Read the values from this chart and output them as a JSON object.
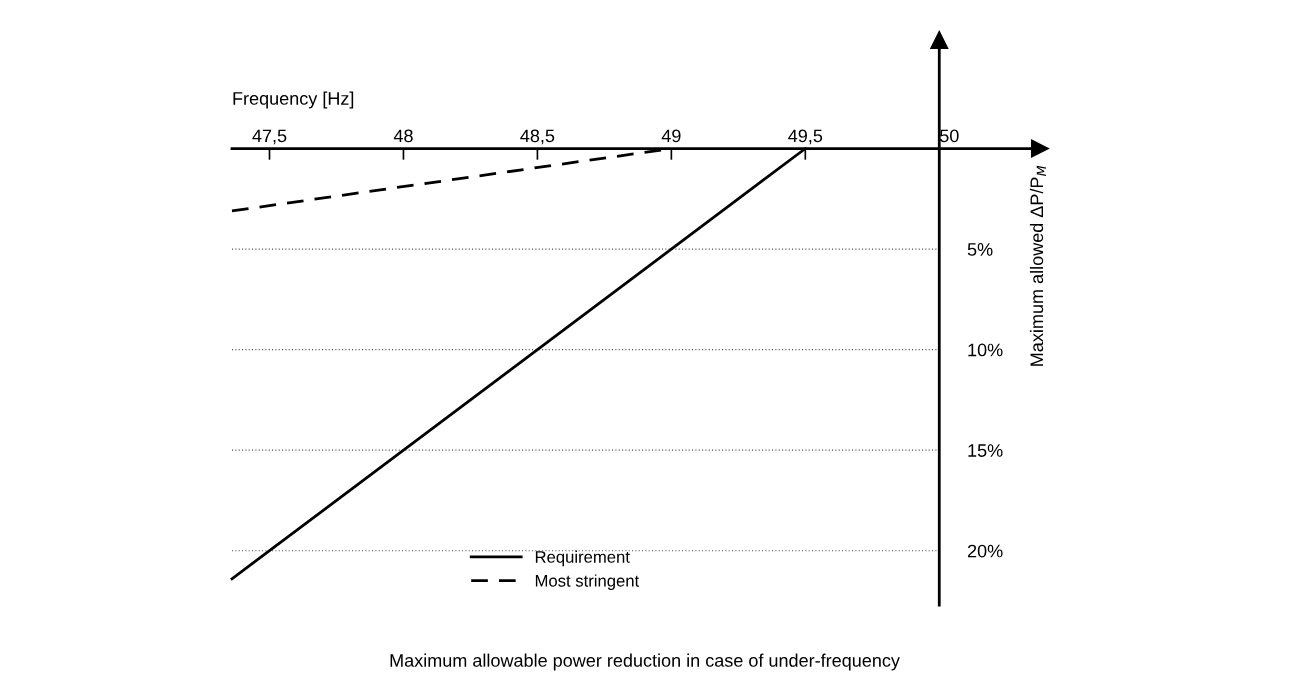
{
  "chart_data": {
    "type": "line",
    "title": "Maximum allowable power reduction in case of under-frequency",
    "xlabel": "Frequency [Hz]",
    "ylabel": "Maximum allowed ΔP/P$_{M}$",
    "xlim": [
      47.36,
      50.376
    ],
    "xticks": [
      {
        "value": 47.5,
        "label": "47,5"
      },
      48,
      {
        "value": 48.5,
        "label": "48,5"
      },
      49,
      {
        "value": 49.5,
        "label": "49,5"
      },
      50
    ],
    "ylim": [
      22.7,
      -5.4
    ],
    "yticks": [
      {
        "value": 5,
        "label": "5%"
      },
      {
        "value": 10,
        "label": "10%"
      },
      {
        "value": 15,
        "label": "15%"
      },
      {
        "value": 20,
        "label": "20%"
      }
    ],
    "grid": "y",
    "legend": "bottom",
    "series": [
      {
        "name": "Requirement",
        "color": "#000000",
        "line_style": "solid",
        "x": [
          47.36,
          49.5
        ],
        "values": [
          21.4,
          0
        ]
      },
      {
        "name": "Most stringent",
        "color": "#000000",
        "line_style": "dashed",
        "x": [
          47.36,
          49
        ],
        "values": [
          3.1,
          0
        ]
      }
    ]
  }
}
